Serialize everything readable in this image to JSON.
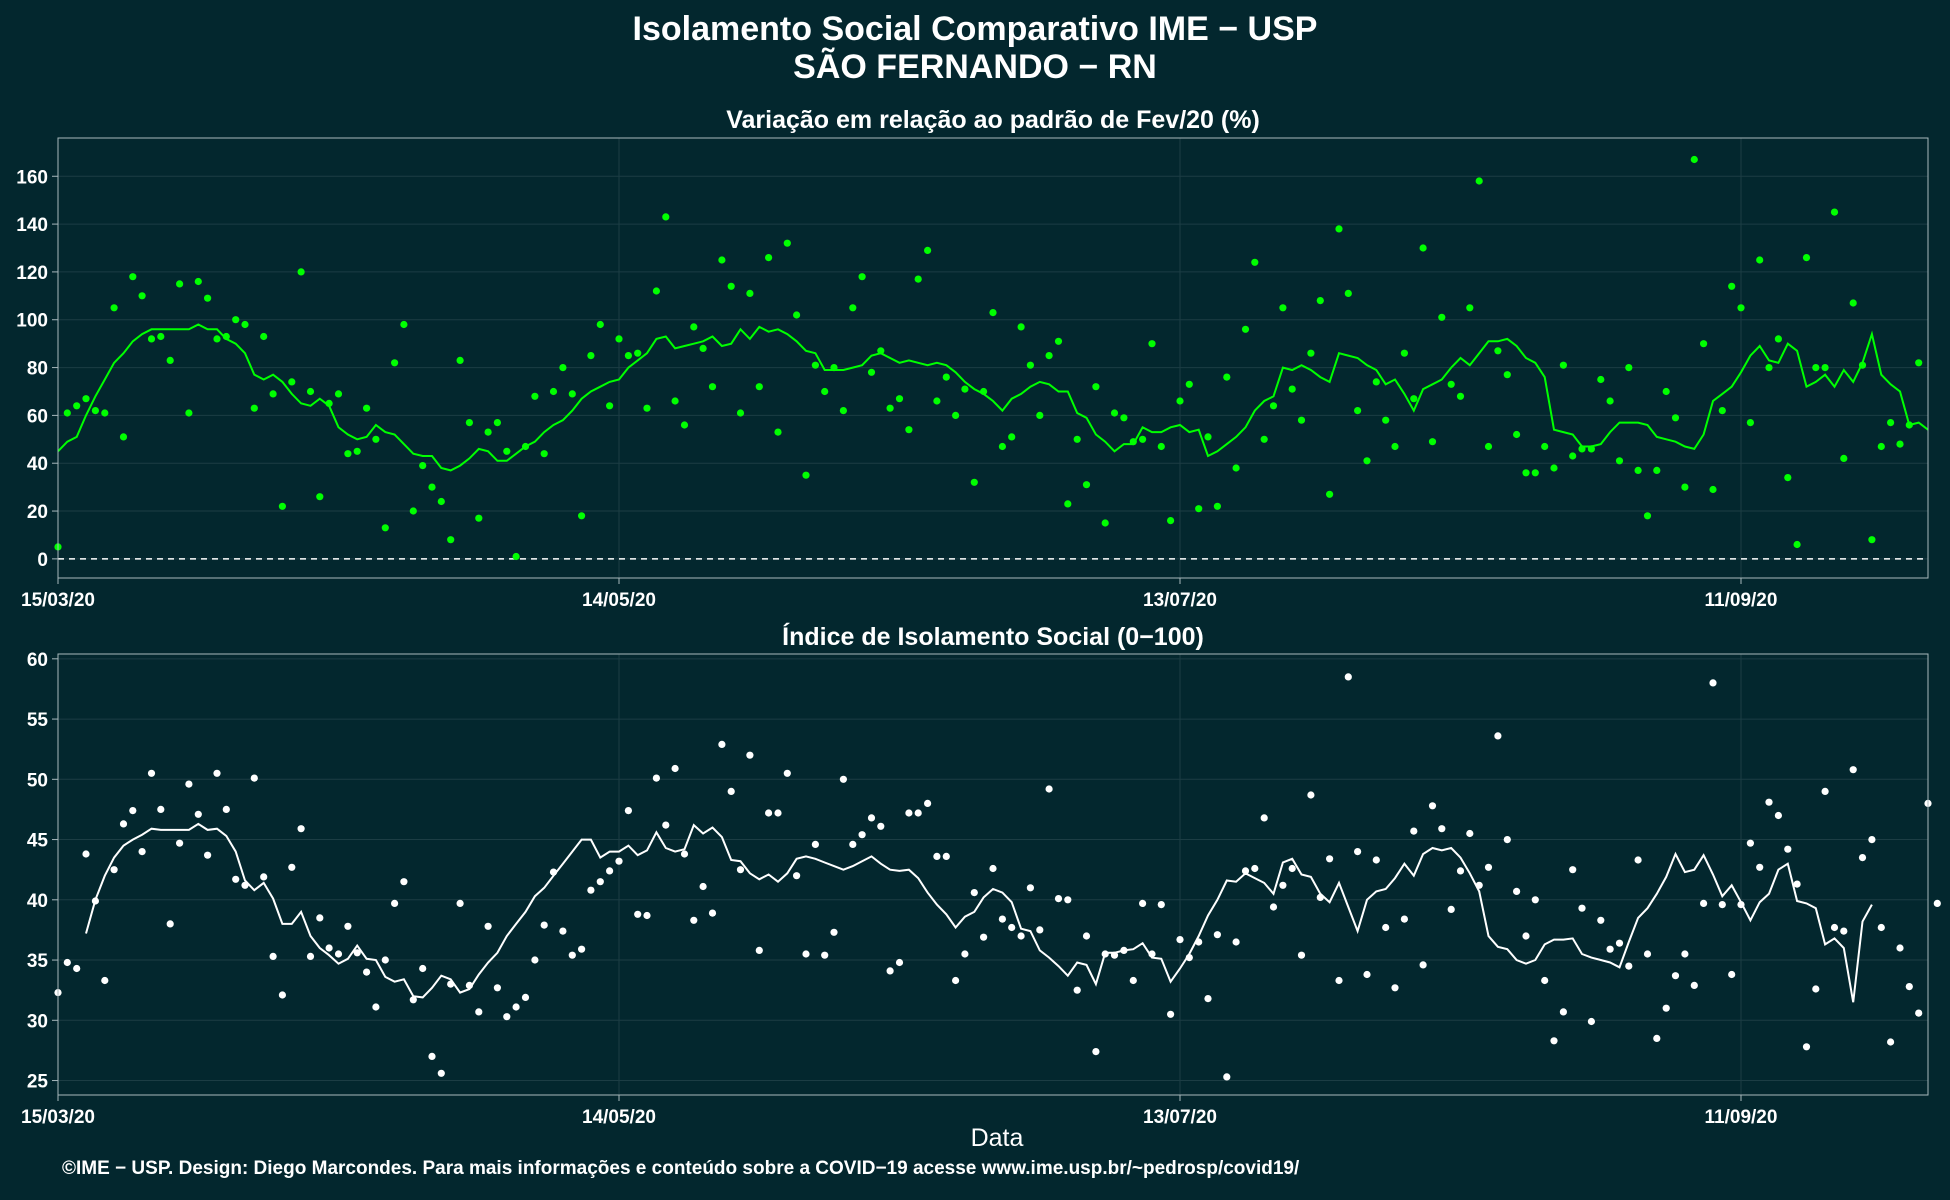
{
  "title": {
    "line1": "Isolamento Social Comparativo IME − USP",
    "line2": "SÃO FERNANDO − RN"
  },
  "xlabel": "Data",
  "credit": "©IME − USP. Design: Diego Marcondes. Para mais informações e conteúdo sobre a COVID−19 acesse www.ime.usp.br/~pedrosp/covid19/",
  "colors": {
    "background": "#03272e",
    "panel1_series": "#00ff00",
    "panel2_series": "#ffffff",
    "grid": "#1c3d44",
    "frame": "#a8b8bc"
  },
  "chart_data": [
    {
      "type": "scatter",
      "title": "Variação em relação ao padrão de Fev/20 (%)",
      "x_start_date": "15/03/20",
      "x_tick_labels": [
        "15/03/20",
        "14/05/20",
        "13/07/20",
        "11/09/20"
      ],
      "x_tick_day_index": [
        0,
        60,
        120,
        180
      ],
      "xlim_days": [
        0,
        200
      ],
      "y_ticks": [
        0,
        20,
        40,
        60,
        80,
        100,
        120,
        140,
        160
      ],
      "ylim": [
        -8,
        176
      ],
      "reference_line": 0,
      "grid": true,
      "series": [
        {
          "kind": "points",
          "values": [
            5,
            61,
            64,
            67,
            62,
            61,
            105,
            51,
            118,
            110,
            92,
            93,
            83,
            115,
            61,
            116,
            109,
            92,
            93,
            100,
            98,
            63,
            93,
            69,
            22,
            74,
            120,
            70,
            26,
            65,
            69,
            44,
            45,
            63,
            50,
            13,
            82,
            98,
            20,
            39,
            30,
            24,
            8,
            83,
            57,
            17,
            53,
            57,
            45,
            1,
            47,
            68,
            44,
            70,
            80,
            69,
            18,
            85,
            98,
            64,
            92,
            85,
            86,
            63,
            112,
            143,
            66,
            56,
            97,
            88,
            72,
            125,
            114,
            61,
            111,
            72,
            126,
            53,
            132,
            102,
            35,
            81,
            70,
            80,
            62,
            105,
            118,
            78,
            87,
            63,
            67,
            54,
            117,
            129,
            66,
            76,
            60,
            71,
            32,
            70,
            103,
            47,
            51,
            97,
            81,
            60,
            85,
            91,
            23,
            50,
            31,
            72,
            15,
            61,
            59,
            49,
            50,
            90,
            47,
            16,
            66,
            73,
            21,
            51,
            22,
            76,
            38,
            96,
            124,
            50,
            64,
            105,
            71,
            58,
            86,
            108,
            27,
            138,
            111,
            62,
            41,
            74,
            58,
            47,
            86,
            67,
            130,
            49,
            101,
            73,
            68,
            105,
            158,
            47,
            87,
            77,
            52,
            36,
            36,
            47,
            38,
            81,
            43,
            46,
            46,
            75,
            66,
            41,
            80,
            37,
            18,
            37,
            70,
            59,
            30,
            167,
            90,
            29,
            62,
            114,
            105,
            57,
            125,
            80,
            92,
            34,
            6,
            126,
            80,
            80,
            145,
            42,
            107,
            81,
            8,
            47,
            57,
            48,
            56,
            82
          ]
        },
        {
          "kind": "line",
          "values": [
            45,
            49,
            51,
            60,
            68,
            75,
            82,
            86,
            91,
            94,
            96,
            96,
            96,
            96,
            96,
            98,
            96,
            96,
            92,
            90,
            86,
            77,
            75,
            77,
            74,
            69,
            65,
            64,
            67,
            64,
            55,
            52,
            50,
            51,
            56,
            53,
            52,
            48,
            44,
            43,
            43,
            38,
            37,
            39,
            42,
            46,
            45,
            41,
            41,
            44,
            47,
            49,
            53,
            56,
            58,
            62,
            67,
            70,
            72,
            74,
            75,
            80,
            83,
            86,
            92,
            93,
            88,
            89,
            90,
            91,
            93,
            89,
            90,
            96,
            92,
            97,
            95,
            96,
            94,
            91,
            87,
            86,
            79,
            79,
            79,
            80,
            81,
            85,
            86,
            84,
            82,
            83,
            82,
            81,
            82,
            81,
            78,
            74,
            71,
            69,
            66,
            62,
            67,
            69,
            72,
            74,
            73,
            70,
            70,
            61,
            59,
            52,
            49,
            45,
            48,
            48,
            55,
            53,
            53,
            55,
            56,
            53,
            54,
            43,
            45,
            48,
            51,
            55,
            62,
            66,
            68,
            80,
            79,
            81,
            79,
            76,
            74,
            86,
            85,
            84,
            81,
            79,
            73,
            75,
            69,
            62,
            71,
            73,
            75,
            80,
            84,
            81,
            86,
            91,
            91,
            92,
            89,
            84,
            82,
            76,
            54,
            53,
            52,
            47,
            47,
            48,
            53,
            57,
            57,
            57,
            56,
            51,
            50,
            49,
            47,
            46,
            52,
            66,
            69,
            72,
            78,
            85,
            89,
            83,
            82,
            90,
            87,
            72,
            74,
            77,
            72,
            79,
            74,
            82,
            94,
            77,
            73,
            70,
            56,
            57,
            54
          ]
        }
      ]
    },
    {
      "type": "scatter",
      "title": "Índice de Isolamento Social (0−100)",
      "x_start_date": "15/03/20",
      "x_tick_labels": [
        "15/03/20",
        "14/05/20",
        "13/07/20",
        "11/09/20"
      ],
      "x_tick_day_index": [
        0,
        60,
        120,
        180
      ],
      "xlim_days": [
        0,
        200
      ],
      "y_ticks": [
        25,
        30,
        35,
        40,
        45,
        50,
        55,
        60
      ],
      "ylim": [
        23.8,
        60.4
      ],
      "grid": true,
      "series": [
        {
          "kind": "points",
          "values": [
            32.3,
            34.8,
            34.3,
            43.8,
            39.9,
            33.3,
            42.5,
            46.3,
            47.4,
            44.0,
            50.5,
            47.5,
            38.0,
            44.7,
            49.6,
            47.1,
            43.7,
            50.5,
            47.5,
            41.7,
            41.2,
            50.1,
            41.9,
            35.3,
            32.1,
            42.7,
            45.9,
            35.3,
            38.5,
            36.0,
            35.5,
            37.8,
            35.6,
            34.0,
            31.1,
            35.0,
            39.7,
            41.5,
            31.7,
            34.3,
            27.0,
            25.6,
            33.0,
            39.7,
            32.9,
            30.7,
            37.8,
            32.7,
            30.3,
            31.1,
            31.9,
            35.0,
            37.9,
            42.3,
            37.4,
            35.4,
            35.9,
            40.8,
            41.5,
            42.4,
            43.2,
            47.4,
            38.8,
            38.7,
            50.1,
            46.2,
            50.9,
            43.8,
            38.3,
            41.1,
            38.9,
            52.9,
            49.0,
            42.5,
            52.0,
            35.8,
            47.2,
            47.2,
            50.5,
            42.0,
            35.5,
            44.6,
            35.4,
            37.3,
            50.0,
            44.6,
            45.4,
            46.8,
            46.1,
            34.1,
            34.8,
            47.2,
            47.2,
            48.0,
            43.6,
            43.6,
            33.3,
            35.5,
            40.6,
            36.9,
            42.6,
            38.4,
            37.7,
            37.0,
            41.0,
            37.5,
            49.2,
            40.1,
            40.0,
            32.5,
            37.0,
            27.4,
            35.5,
            35.4,
            35.8,
            33.3,
            39.7,
            35.5,
            39.6,
            30.5,
            36.7,
            35.2,
            36.5,
            31.8,
            37.1,
            25.3,
            36.5,
            42.4,
            42.6,
            46.8,
            39.4,
            41.2,
            42.6,
            35.4,
            48.7,
            40.2,
            43.4,
            33.3,
            58.5,
            44.0,
            33.8,
            43.3,
            37.7,
            32.7,
            38.4,
            45.7,
            34.6,
            47.8,
            45.9,
            39.2,
            42.4,
            45.5,
            41.2,
            42.7,
            53.6,
            45.0,
            40.7,
            37.0,
            40.0,
            33.3,
            28.3,
            30.7,
            42.5,
            39.3,
            29.9,
            38.3,
            35.9,
            36.4,
            34.5,
            43.3,
            35.5,
            28.5,
            31.0,
            33.7,
            35.5,
            32.9,
            39.7,
            58.0,
            39.6,
            33.8,
            39.6,
            44.7,
            42.7,
            48.1,
            47.0,
            44.2,
            41.3,
            27.8,
            32.6,
            49.0,
            37.7,
            37.4,
            50.8,
            43.5,
            45.0,
            37.7,
            28.2,
            36.0,
            32.8,
            30.6,
            48.0,
            39.7
          ]
        },
        {
          "kind": "line",
          "values": [
            null,
            null,
            null,
            37.2,
            40.0,
            42.0,
            43.5,
            44.5,
            45.0,
            45.4,
            45.9,
            45.8,
            45.8,
            45.8,
            45.8,
            46.3,
            45.8,
            45.9,
            45.3,
            44.0,
            41.6,
            40.8,
            41.4,
            40.1,
            38.0,
            38.0,
            39.0,
            37.0,
            36.0,
            35.4,
            34.7,
            35.1,
            36.2,
            35.1,
            35.0,
            33.6,
            33.2,
            33.4,
            32.0,
            31.9,
            32.7,
            33.7,
            33.4,
            32.3,
            32.6,
            33.8,
            34.8,
            35.6,
            37.0,
            38.0,
            39.0,
            40.3,
            41.0,
            42.0,
            43.0,
            44.0,
            45.0,
            45.0,
            43.5,
            44.0,
            44.0,
            44.5,
            43.7,
            44.1,
            45.6,
            44.3,
            44.0,
            44.2,
            46.2,
            45.5,
            46.0,
            45.2,
            43.3,
            43.2,
            42.2,
            41.7,
            42.1,
            41.5,
            42.2,
            43.4,
            43.6,
            43.4,
            43.1,
            42.8,
            42.5,
            42.8,
            43.2,
            43.6,
            43.0,
            42.5,
            42.4,
            42.5,
            41.8,
            40.6,
            39.6,
            38.8,
            37.7,
            38.6,
            39.0,
            40.2,
            40.9,
            40.6,
            39.8,
            37.6,
            37.4,
            35.8,
            35.2,
            34.5,
            33.7,
            34.8,
            34.6,
            33.0,
            35.6,
            35.6,
            35.8,
            35.9,
            36.4,
            35.2,
            35.1,
            33.2,
            34.3,
            35.5,
            37.0,
            38.7,
            40.0,
            41.6,
            41.5,
            42.2,
            41.8,
            41.4,
            40.5,
            43.1,
            43.4,
            42.1,
            41.9,
            40.5,
            39.8,
            41.4,
            39.4,
            37.4,
            40.0,
            40.7,
            40.9,
            41.8,
            43.0,
            42.0,
            43.8,
            44.3,
            44.1,
            44.3,
            43.5,
            42.2,
            40.7,
            37.0,
            36.1,
            35.9,
            35.0,
            34.7,
            35.0,
            36.3,
            36.7,
            36.7,
            36.8,
            35.5,
            35.2,
            35.0,
            34.8,
            34.4,
            36.5,
            38.5,
            39.3,
            40.5,
            41.9,
            43.8,
            42.3,
            42.5,
            43.7,
            42.1,
            40.3,
            41.2,
            39.8,
            38.3,
            39.8,
            40.5,
            42.5,
            43.0,
            39.9,
            39.7,
            39.3,
            36.3,
            36.8,
            36.0,
            31.5,
            38.2,
            39.6
          ]
        }
      ]
    }
  ]
}
